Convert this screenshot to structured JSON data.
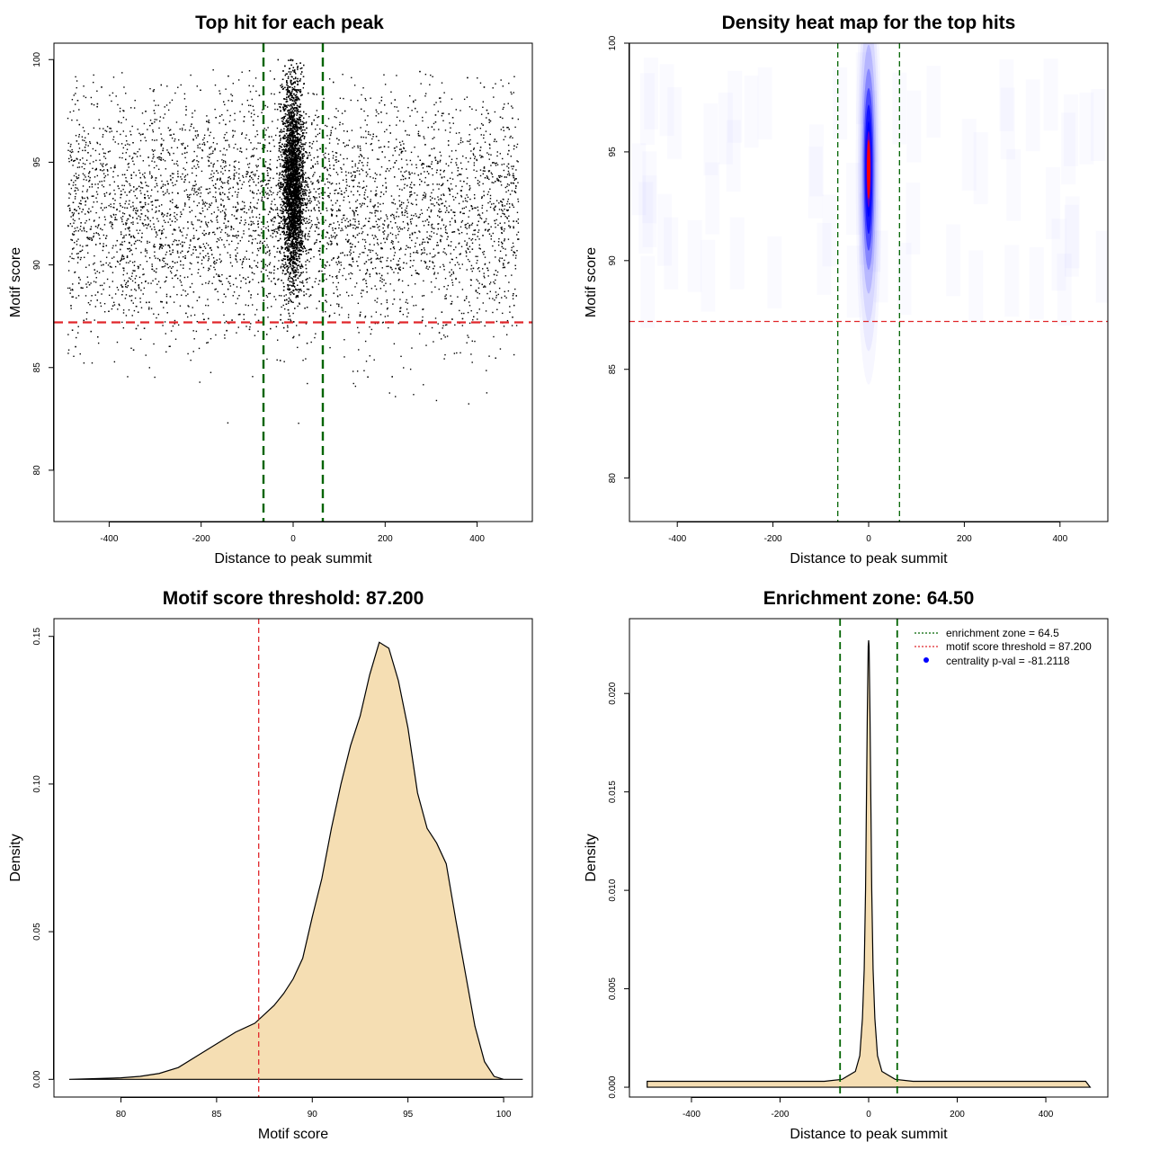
{
  "colors": {
    "threshold_line": "#e0262a",
    "zone_line": "#006400",
    "density_fill": "#f5deb3",
    "heat_low": "#ffffff",
    "heat_mid": "#0000ff",
    "heat_high": "#ff0000",
    "points": "#000000",
    "centrality_marker": "#0000ff"
  },
  "chart_data": [
    {
      "type": "scatter",
      "title": "Top hit for each peak",
      "xlabel": "Distance to peak summit",
      "ylabel": "Motif score",
      "xlim": [
        -520,
        520
      ],
      "ylim": [
        77.5,
        100.8
      ],
      "xticks": [
        -400,
        -200,
        0,
        200,
        400
      ],
      "yticks": [
        80,
        85,
        90,
        95,
        100
      ],
      "xtick_labels": [
        "-400",
        "-200",
        "0",
        "200",
        "400"
      ],
      "ytick_labels": [
        "80",
        "85",
        "90",
        "95",
        "100"
      ],
      "background_uniform": {
        "x_range": [
          -490,
          490
        ],
        "y_mode": 92.5,
        "y_spread": 3.0,
        "n": 5200
      },
      "central_cluster": {
        "x_center": 0,
        "x_spread": 12,
        "y_mode": 94.0,
        "y_spread": 2.4,
        "y_min": 86.0,
        "y_max": 100,
        "n": 6500
      },
      "hlines": [
        87.2
      ],
      "vlines": [
        -64.5,
        64.5
      ],
      "grid": false
    },
    {
      "type": "heatmap",
      "title": "Density heat map for the top hits",
      "xlabel": "Distance to peak summit",
      "ylabel": "Motif score",
      "xlim": [
        -500,
        500
      ],
      "ylim": [
        78,
        100
      ],
      "xticks": [
        -400,
        -200,
        0,
        200,
        400
      ],
      "yticks": [
        80,
        85,
        90,
        95,
        100
      ],
      "xtick_labels": [
        "-400",
        "-200",
        "0",
        "200",
        "400"
      ],
      "ytick_labels": [
        "80",
        "85",
        "90",
        "95",
        "100"
      ],
      "hotspot": {
        "x_center": 0,
        "y_center": 94.2,
        "x_spread": 6,
        "y_spread": 2.2
      },
      "hlines": [
        87.2
      ],
      "vlines": [
        -64.5,
        64.5
      ],
      "grid": false
    },
    {
      "type": "area",
      "title": "Motif score threshold: 87.200",
      "xlabel": "Motif score",
      "ylabel": "Density",
      "xlim": [
        76.5,
        101.5
      ],
      "ylim": [
        -0.006,
        0.156
      ],
      "xticks": [
        80,
        85,
        90,
        95,
        100
      ],
      "yticks": [
        0.0,
        0.05,
        0.1,
        0.15
      ],
      "xtick_labels": [
        "80",
        "85",
        "90",
        "95",
        "100"
      ],
      "ytick_labels": [
        "0.00",
        "0.05",
        "0.10",
        "0.15"
      ],
      "x": [
        77.3,
        80,
        81,
        82,
        83,
        84,
        85,
        86,
        87,
        88,
        88.5,
        89,
        89.5,
        90,
        90.5,
        91,
        91.5,
        92,
        92.5,
        93,
        93.5,
        94,
        94.5,
        95,
        95.5,
        96,
        96.5,
        97,
        97.5,
        98,
        98.5,
        99,
        99.5,
        100,
        101
      ],
      "y": [
        0.0,
        0.0005,
        0.001,
        0.002,
        0.004,
        0.008,
        0.012,
        0.016,
        0.019,
        0.025,
        0.029,
        0.034,
        0.041,
        0.055,
        0.068,
        0.085,
        0.1,
        0.113,
        0.123,
        0.137,
        0.148,
        0.146,
        0.135,
        0.119,
        0.097,
        0.085,
        0.08,
        0.073,
        0.054,
        0.036,
        0.018,
        0.006,
        0.001,
        0.0,
        0.0
      ],
      "vlines": [
        87.2
      ],
      "grid": false
    },
    {
      "type": "area",
      "title": "Enrichment zone: 64.50",
      "xlabel": "Distance to peak summit",
      "ylabel": "Density",
      "xlim": [
        -540,
        540
      ],
      "ylim": [
        -0.0005,
        0.0238
      ],
      "xticks": [
        -400,
        -200,
        0,
        200,
        400
      ],
      "yticks": [
        0.0,
        0.005,
        0.01,
        0.015,
        0.02
      ],
      "xtick_labels": [
        "-400",
        "-200",
        "0",
        "200",
        "400"
      ],
      "ytick_labels": [
        "0.000",
        "0.005",
        "0.010",
        "0.015",
        "0.020"
      ],
      "x": [
        -500,
        -400,
        -300,
        -200,
        -100,
        -60,
        -30,
        -20,
        -14,
        -10,
        -7,
        -5,
        -3,
        -1,
        0,
        1,
        3,
        5,
        7,
        10,
        14,
        20,
        30,
        60,
        100,
        200,
        300,
        400,
        490,
        500
      ],
      "y": [
        0.0003,
        0.0003,
        0.0003,
        0.0003,
        0.0003,
        0.0004,
        0.0008,
        0.0016,
        0.0035,
        0.006,
        0.01,
        0.0145,
        0.019,
        0.0224,
        0.0227,
        0.0224,
        0.019,
        0.0145,
        0.01,
        0.006,
        0.0035,
        0.0016,
        0.0008,
        0.0004,
        0.0003,
        0.0003,
        0.0003,
        0.0003,
        0.0003,
        0.0
      ],
      "vlines": [
        -64.5,
        64.5
      ],
      "legend": {
        "placement": "top-right",
        "entries": [
          {
            "label": "enrichment zone = 64.5",
            "style": "dotted-line",
            "color": "#006400"
          },
          {
            "label": "motif score threshold = 87.200",
            "style": "dotted-line",
            "color": "#e0262a"
          },
          {
            "label": "centrality p-val = -81.2118",
            "style": "point",
            "color": "#0000ff"
          }
        ]
      },
      "grid": false
    }
  ]
}
